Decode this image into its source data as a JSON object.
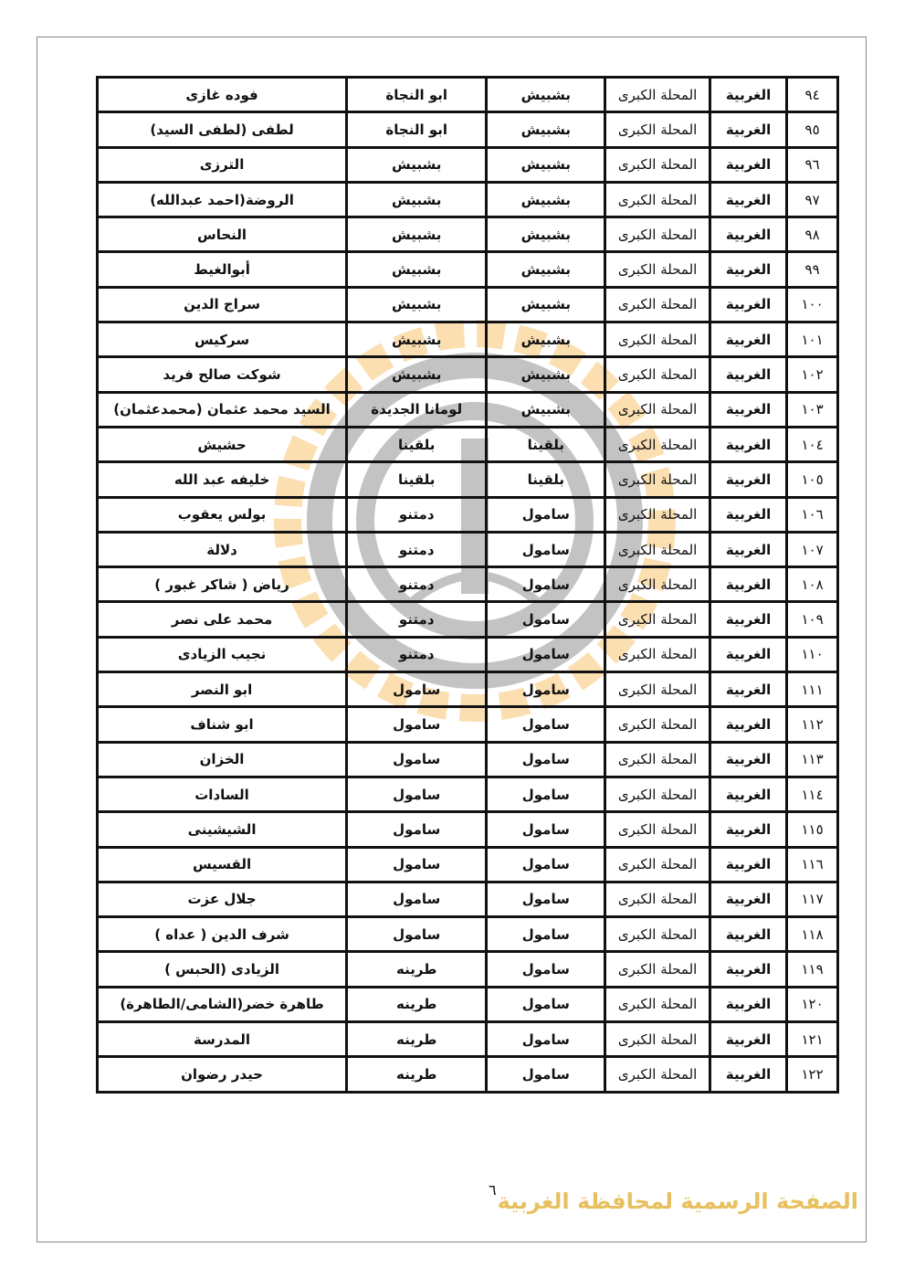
{
  "watermark": {
    "text": "الصفحة الرسمية لمحافظة الغربية",
    "colors": {
      "orange": "#f5a623",
      "gray": "#555555"
    }
  },
  "page_number": "٦",
  "rows": [
    [
      "٩٤",
      "الغربية",
      "المحلة الكبرى",
      "بشبيش",
      "ابو النجاة",
      "فوده غازى"
    ],
    [
      "٩٥",
      "الغربية",
      "المحلة الكبرى",
      "بشبيش",
      "ابو النجاة",
      "لطفى (لطفى السيد)"
    ],
    [
      "٩٦",
      "الغربية",
      "المحلة الكبرى",
      "بشبيش",
      "بشبيش",
      "الترزى"
    ],
    [
      "٩٧",
      "الغربية",
      "المحلة الكبرى",
      "بشبيش",
      "بشبيش",
      "الروضة(احمد عبدالله)"
    ],
    [
      "٩٨",
      "الغربية",
      "المحلة الكبرى",
      "بشبيش",
      "بشبيش",
      "النحاس"
    ],
    [
      "٩٩",
      "الغربية",
      "المحلة الكبرى",
      "بشبيش",
      "بشبيش",
      "أبوالغيط"
    ],
    [
      "١٠٠",
      "الغربية",
      "المحلة الكبرى",
      "بشبيش",
      "بشبيش",
      "سراج الدين"
    ],
    [
      "١٠١",
      "الغربية",
      "المحلة الكبرى",
      "بشبيش",
      "بشبيش",
      "سركيس"
    ],
    [
      "١٠٢",
      "الغربية",
      "المحلة الكبرى",
      "بشبيش",
      "بشبيش",
      "شوكت صالح فريد"
    ],
    [
      "١٠٣",
      "الغربية",
      "المحلة الكبرى",
      "بشبيش",
      "لومانا الجديدة",
      "السيد محمد عثمان (محمدعثمان)"
    ],
    [
      "١٠٤",
      "الغربية",
      "المحلة الكبرى",
      "بلقينا",
      "بلقينا",
      "حشيش"
    ],
    [
      "١٠٥",
      "الغربية",
      "المحلة الكبرى",
      "بلقينا",
      "بلقينا",
      "خليفه عبد الله"
    ],
    [
      "١٠٦",
      "الغربية",
      "المحلة الكبرى",
      "سامول",
      "دمتنو",
      "بولس يعقوب"
    ],
    [
      "١٠٧",
      "الغربية",
      "المحلة الكبرى",
      "سامول",
      "دمتنو",
      "دلالة"
    ],
    [
      "١٠٨",
      "الغربية",
      "المحلة الكبرى",
      "سامول",
      "دمتنو",
      "رياض ( شاكر غبور )"
    ],
    [
      "١٠٩",
      "الغربية",
      "المحلة الكبرى",
      "سامول",
      "دمتنو",
      "محمد على نصر"
    ],
    [
      "١١٠",
      "الغربية",
      "المحلة الكبرى",
      "سامول",
      "دمتنو",
      "نجيب الزيادى"
    ],
    [
      "١١١",
      "الغربية",
      "المحلة الكبرى",
      "سامول",
      "سامول",
      "ابو النصر"
    ],
    [
      "١١٢",
      "الغربية",
      "المحلة الكبرى",
      "سامول",
      "سامول",
      "ابو شناف"
    ],
    [
      "١١٣",
      "الغربية",
      "المحلة الكبرى",
      "سامول",
      "سامول",
      "الخزان"
    ],
    [
      "١١٤",
      "الغربية",
      "المحلة الكبرى",
      "سامول",
      "سامول",
      "السادات"
    ],
    [
      "١١٥",
      "الغربية",
      "المحلة الكبرى",
      "سامول",
      "سامول",
      "الشيشينى"
    ],
    [
      "١١٦",
      "الغربية",
      "المحلة الكبرى",
      "سامول",
      "سامول",
      "القسيس"
    ],
    [
      "١١٧",
      "الغربية",
      "المحلة الكبرى",
      "سامول",
      "سامول",
      "جلال عزت"
    ],
    [
      "١١٨",
      "الغربية",
      "المحلة الكبرى",
      "سامول",
      "سامول",
      "شرف الدين ( عداه )"
    ],
    [
      "١١٩",
      "الغربية",
      "المحلة الكبرى",
      "سامول",
      "طرينه",
      "الزيادى (الحبس )"
    ],
    [
      "١٢٠",
      "الغربية",
      "المحلة الكبرى",
      "سامول",
      "طرينه",
      "طاهرة خضر(الشامى/الطاهرة)"
    ],
    [
      "١٢١",
      "الغربية",
      "المحلة الكبرى",
      "سامول",
      "طرينه",
      "المدرسة"
    ],
    [
      "١٢٢",
      "الغربية",
      "المحلة الكبرى",
      "سامول",
      "طرينه",
      "حيدر رضوان"
    ]
  ]
}
